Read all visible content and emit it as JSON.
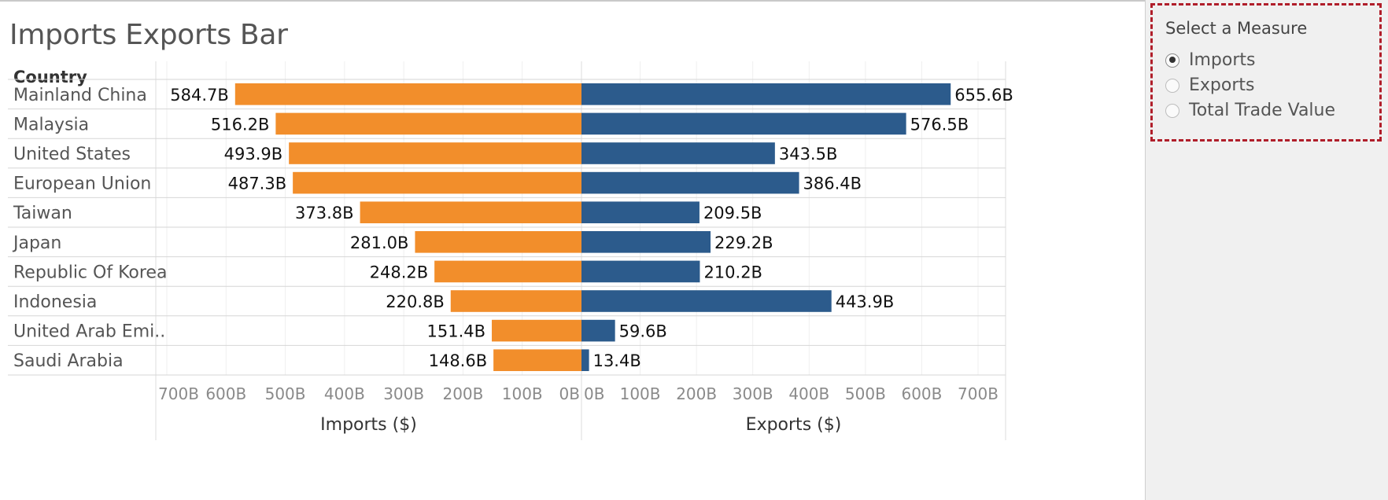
{
  "title": "Imports Exports Bar",
  "column_header": "Country",
  "colors": {
    "imports": "#f28e2b",
    "exports": "#2c5b8c",
    "highlight_border": "#b01e2a"
  },
  "measure_selector": {
    "title": "Select a Measure",
    "options": [
      {
        "label": "Imports",
        "selected": true
      },
      {
        "label": "Exports",
        "selected": false
      },
      {
        "label": "Total Trade Value",
        "selected": false
      }
    ]
  },
  "chart_data": {
    "type": "bar",
    "orientation": "horizontal-diverging",
    "categories": [
      "Mainland China",
      "Malaysia",
      "United States",
      "European Union",
      "Taiwan",
      "Japan",
      "Republic Of Korea",
      "Indonesia",
      "United Arab Emi..",
      "Saudi Arabia"
    ],
    "series": [
      {
        "name": "Imports ($)",
        "values": [
          584.7,
          516.2,
          493.9,
          487.3,
          373.8,
          281.0,
          248.2,
          220.8,
          151.4,
          148.6
        ],
        "value_labels": [
          "584.7B",
          "516.2B",
          "493.9B",
          "487.3B",
          "373.8B",
          "281.0B",
          "248.2B",
          "220.8B",
          "151.4B",
          "148.6B"
        ]
      },
      {
        "name": "Exports ($)",
        "values": [
          655.6,
          576.5,
          343.5,
          386.4,
          209.5,
          229.2,
          210.2,
          443.9,
          59.6,
          13.4
        ],
        "value_labels": [
          "655.6B",
          "576.5B",
          "343.5B",
          "386.4B",
          "209.5B",
          "229.2B",
          "210.2B",
          "443.9B",
          "59.6B",
          "13.4B"
        ]
      }
    ],
    "unit": "B",
    "imports_axis": {
      "label": "Imports ($)",
      "range": [
        0,
        700
      ],
      "reversed": true,
      "ticks": [
        "700B",
        "600B",
        "500B",
        "400B",
        "300B",
        "200B",
        "100B",
        "0B"
      ]
    },
    "exports_axis": {
      "label": "Exports ($)",
      "range": [
        0,
        700
      ],
      "ticks": [
        "0B",
        "100B",
        "200B",
        "300B",
        "400B",
        "500B",
        "600B",
        "700B"
      ]
    },
    "grid": true
  }
}
